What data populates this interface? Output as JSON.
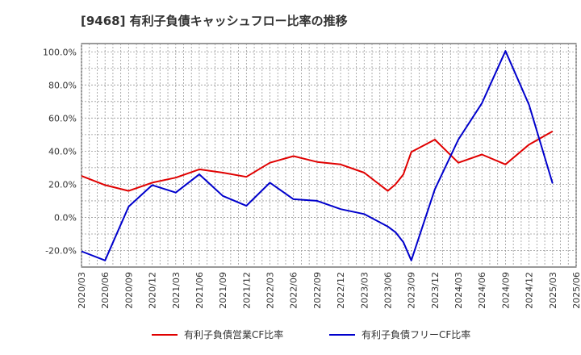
{
  "chart_data": {
    "type": "line",
    "title": "[9468]  有利子負債キャッシュフロー比率の推移",
    "xlabel": "",
    "ylabel": "",
    "ylim": [
      -30,
      105
    ],
    "yticks": [
      -20,
      0,
      20,
      40,
      60,
      80,
      100
    ],
    "ytick_labels": [
      "-20.0%",
      "0.0%",
      "20.0%",
      "40.0%",
      "60.0%",
      "80.0%",
      "100.0%"
    ],
    "xticks": [
      "2020/03",
      "2020/06",
      "2020/09",
      "2020/12",
      "2021/03",
      "2021/06",
      "2021/09",
      "2021/12",
      "2022/03",
      "2022/06",
      "2022/09",
      "2022/12",
      "2023/03",
      "2023/06",
      "2023/09",
      "2023/12",
      "2024/03",
      "2024/06",
      "2024/09",
      "2024/12",
      "2025/03",
      "2025/06"
    ],
    "grid": true,
    "legend_position": "bottom",
    "series": [
      {
        "name": "有利子負債営業CF比率",
        "color": "#e00000",
        "points": [
          [
            "2020/03",
            25.0
          ],
          [
            "2020/06",
            19.5
          ],
          [
            "2020/09",
            16.0
          ],
          [
            "2020/12",
            21.0
          ],
          [
            "2021/03",
            24.0
          ],
          [
            "2021/06",
            29.0
          ],
          [
            "2021/09",
            27.0
          ],
          [
            "2021/12",
            24.5
          ],
          [
            "2022/03",
            33.0
          ],
          [
            "2022/06",
            37.0
          ],
          [
            "2022/09",
            33.5
          ],
          [
            "2022/12",
            32.0
          ],
          [
            "2023/03",
            27.0
          ],
          [
            "2023/06",
            16.0
          ],
          [
            "2023/07",
            20.0
          ],
          [
            "2023/08",
            26.0
          ],
          [
            "2023/09",
            39.5
          ],
          [
            "2023/12",
            47.0
          ],
          [
            "2024/03",
            33.0
          ],
          [
            "2024/06",
            38.0
          ],
          [
            "2024/09",
            32.0
          ],
          [
            "2024/12",
            44.0
          ],
          [
            "2025/03",
            52.0
          ]
        ]
      },
      {
        "name": "有利子負債フリーCF比率",
        "color": "#0000cc",
        "points": [
          [
            "2020/03",
            -20.5
          ],
          [
            "2020/06",
            -26.0
          ],
          [
            "2020/09",
            6.5
          ],
          [
            "2020/12",
            19.5
          ],
          [
            "2021/03",
            15.0
          ],
          [
            "2021/06",
            26.0
          ],
          [
            "2021/09",
            13.0
          ],
          [
            "2021/12",
            7.0
          ],
          [
            "2022/03",
            21.0
          ],
          [
            "2022/06",
            11.0
          ],
          [
            "2022/09",
            10.0
          ],
          [
            "2022/12",
            5.0
          ],
          [
            "2023/03",
            2.0
          ],
          [
            "2023/06",
            -5.5
          ],
          [
            "2023/07",
            -9.0
          ],
          [
            "2023/08",
            -15.0
          ],
          [
            "2023/09",
            -26.0
          ],
          [
            "2023/12",
            17.0
          ],
          [
            "2024/03",
            47.0
          ],
          [
            "2024/06",
            69.0
          ],
          [
            "2024/09",
            100.5
          ],
          [
            "2024/12",
            68.0
          ],
          [
            "2025/03",
            20.5
          ]
        ]
      }
    ]
  }
}
